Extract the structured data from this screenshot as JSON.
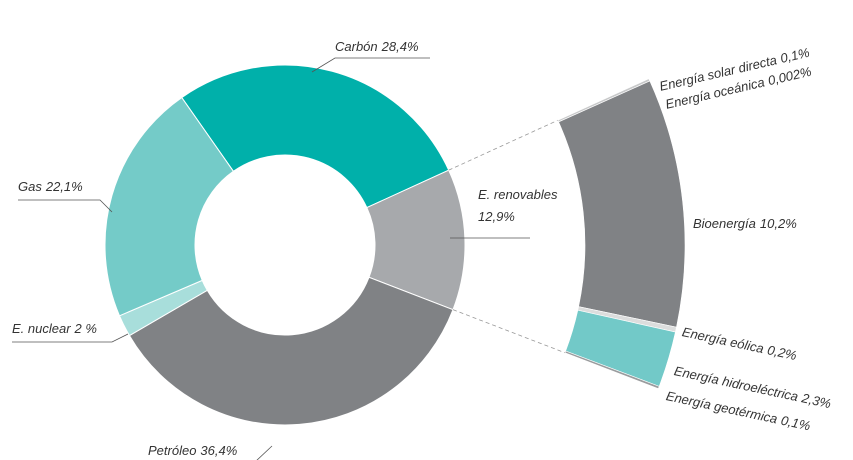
{
  "chart_data": {
    "type": "donut",
    "categories": [
      "Carbón",
      "E. renovables",
      "Petróleo",
      "E. nuclear",
      "Gas"
    ],
    "values": [
      28.4,
      12.9,
      36.4,
      2,
      22.1
    ],
    "value_labels": [
      "28,4%",
      "12,9%",
      "36,4%",
      "2 %",
      "22,1%"
    ],
    "colors": [
      "#00b0aa",
      "#a7a9ac",
      "#808285",
      "#a8dedb",
      "#74cbc8"
    ],
    "breakdown": {
      "categories": [
        "Energía solar directa",
        "Energía oceánica",
        "Bioenergía",
        "Energía eólica",
        "Energía hidroeléctrica",
        "Energía geotérmica"
      ],
      "values": [
        0.1,
        0.002,
        10.2,
        0.2,
        2.3,
        0.1
      ],
      "value_labels": [
        "0,1%",
        "0,002%",
        "10,2%",
        "0,2%",
        "2,3%",
        "0,1%"
      ],
      "colors": [
        "#c8c9ca",
        "#b0b2b4",
        "#808285",
        "#dcdddd",
        "#72c9c8",
        "#9a9c9e"
      ]
    }
  }
}
